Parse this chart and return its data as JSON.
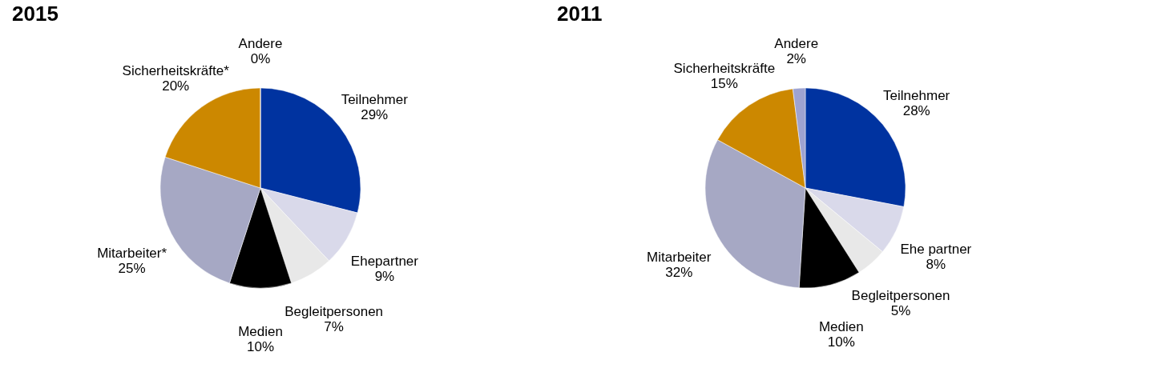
{
  "chart_data": [
    {
      "type": "pie",
      "title": "2015",
      "categories": [
        "Teilnehmer",
        "Ehepartner",
        "Begleitpersonen",
        "Medien",
        "Mitarbeiter*",
        "Sicherheitskräfte*",
        "Andere"
      ],
      "values": [
        29,
        9,
        7,
        10,
        25,
        20,
        0
      ],
      "colors": [
        "#0033a0",
        "#d9d9ea",
        "#e8e8e8",
        "#000000",
        "#a6a8c4",
        "#cc8800",
        "#a0a0a8"
      ],
      "value_labels": [
        "29%",
        "9%",
        "7%",
        "10%",
        "25%",
        "20%",
        "0%"
      ]
    },
    {
      "type": "pie",
      "title": "2011",
      "categories": [
        "Teilnehmer",
        "Ehe partner",
        "Begleitpersonen",
        "Medien",
        "Mitarbeiter",
        "Sicherheitskräfte",
        "Andere"
      ],
      "values": [
        28,
        8,
        5,
        10,
        32,
        15,
        2
      ],
      "colors": [
        "#0033a0",
        "#d9d9ea",
        "#e8e8e8",
        "#000000",
        "#a6a8c4",
        "#cc8800",
        "#9ea3d1"
      ],
      "value_labels": [
        "28%",
        "8%",
        "5%",
        "10%",
        "32%",
        "15%",
        "2%"
      ]
    }
  ]
}
